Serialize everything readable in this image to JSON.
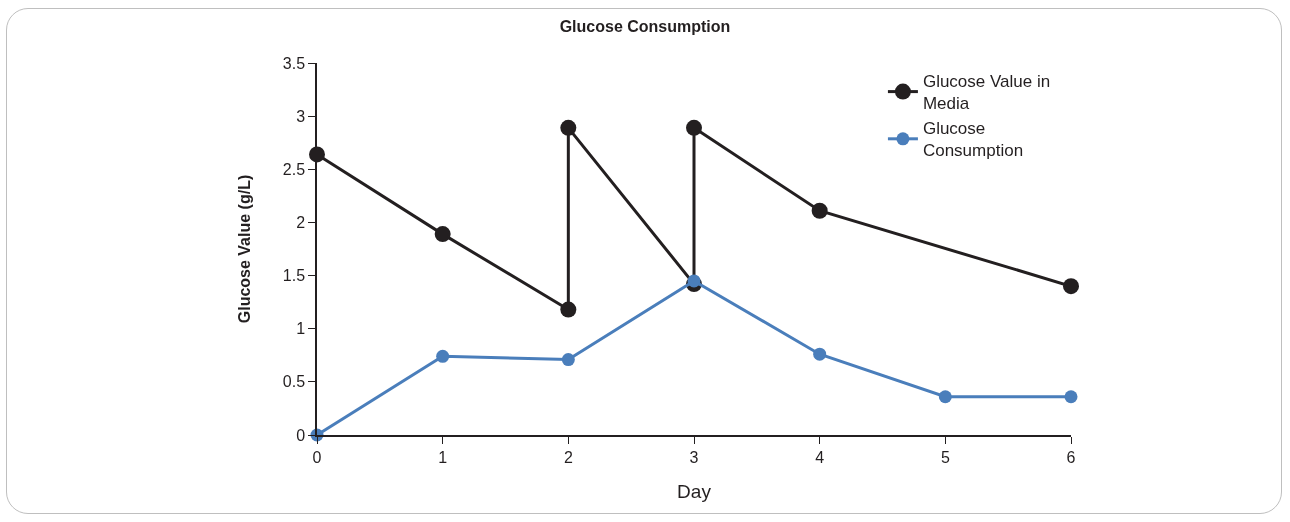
{
  "chart_data": {
    "type": "line",
    "title": "Glucose Consumption",
    "xlabel": "Day",
    "ylabel": "Glucose Value (g/L)",
    "xlim": [
      0,
      6
    ],
    "xticks": [
      0,
      1,
      2,
      3,
      4,
      5,
      6
    ],
    "ylim": [
      0,
      3.5
    ],
    "yticks": [
      0,
      0.5,
      1,
      1.5,
      2,
      2.5,
      3,
      3.5
    ],
    "grid": false,
    "legend": "top right",
    "marker": "circle",
    "line_style": "solid",
    "series": [
      {
        "name": "Glucose Value in Media",
        "color": "#231f20",
        "x": [
          0,
          1,
          2,
          2,
          3,
          3,
          4,
          6
        ],
        "values": [
          2.64,
          1.89,
          1.18,
          2.89,
          1.42,
          2.89,
          2.11,
          1.4
        ]
      },
      {
        "name": "Glucose Consumption",
        "color": "#4a7ebb",
        "x": [
          0,
          1,
          2,
          3,
          4,
          5,
          6
        ],
        "values": [
          0,
          0.74,
          0.71,
          1.45,
          0.76,
          0.36,
          0.36
        ]
      }
    ]
  }
}
